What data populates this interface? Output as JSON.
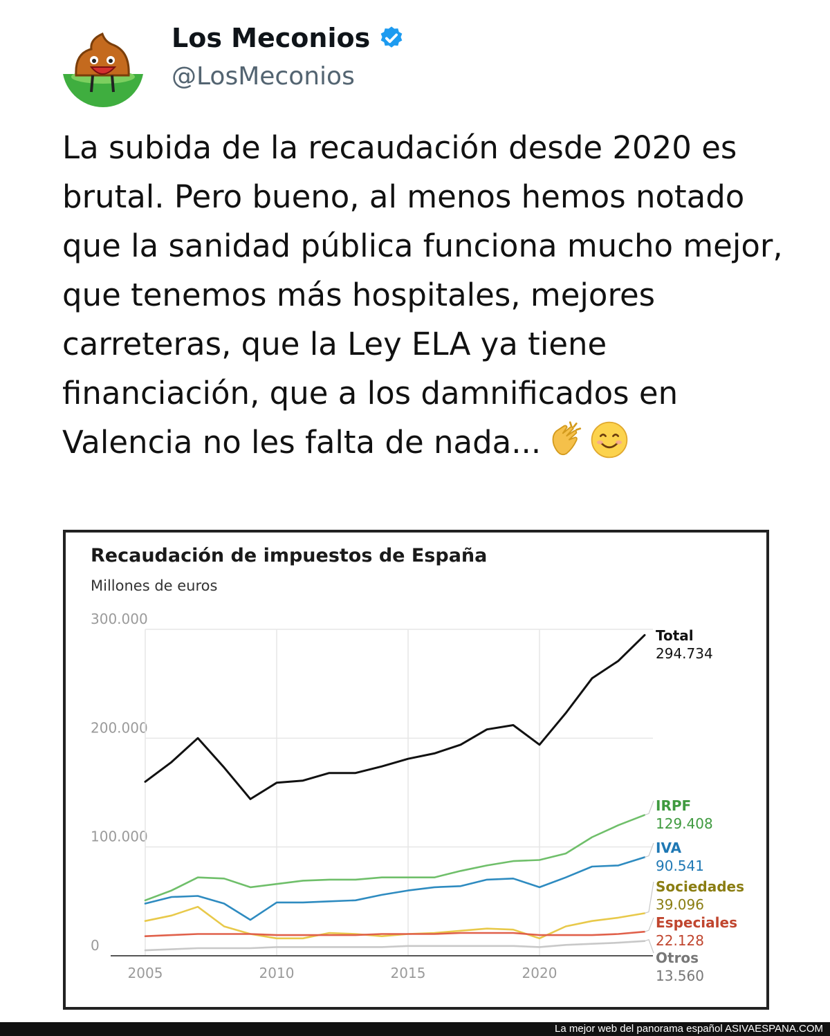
{
  "tweet": {
    "display_name": "Los Meconios",
    "handle": "@LosMeconios",
    "verified": true,
    "avatar_icon": "poop-character-avatar",
    "text": "La subida de la recaudación desde 2020 es brutal. Pero bueno, al menos hemos notado que la sanidad pública funciona mucho mejor, que tenemos más hospitales, mejores carreteras, que la Ley ELA ya tiene financiación, que a los damnificados en Valencia no les falta de nada...",
    "emojis": [
      "clapping-hands-emoji",
      "smiling-face-emoji"
    ]
  },
  "chart_data": {
    "type": "line",
    "title": "Recaudación de impuestos de España",
    "subtitle": "Millones de euros",
    "x": [
      2005,
      2006,
      2007,
      2008,
      2009,
      2010,
      2011,
      2012,
      2013,
      2014,
      2015,
      2016,
      2017,
      2018,
      2019,
      2020,
      2021,
      2022,
      2023,
      2024
    ],
    "xticks": [
      "2005",
      "2010",
      "2015",
      "2020"
    ],
    "yticks": [
      "0",
      "100.000",
      "200.000",
      "300.000"
    ],
    "ylim": [
      0,
      300000
    ],
    "xlim": [
      2005,
      2024
    ],
    "grid": true,
    "legend": "end-of-line labels",
    "series": [
      {
        "name": "Total",
        "label_value": "294.734",
        "color": "#111111",
        "values": [
          160000,
          178000,
          200000,
          173000,
          144000,
          159000,
          161000,
          168000,
          168000,
          174000,
          181000,
          186000,
          194000,
          208000,
          212000,
          194000,
          223000,
          255000,
          271000,
          294734
        ]
      },
      {
        "name": "IRPF",
        "label_value": "129.408",
        "color": "#6fbf6a",
        "values": [
          51000,
          60000,
          72000,
          71000,
          63000,
          66000,
          69000,
          70000,
          70000,
          72000,
          72000,
          72000,
          78000,
          83000,
          87000,
          88000,
          94000,
          109000,
          120000,
          129408
        ]
      },
      {
        "name": "IVA",
        "label_value": "90.541",
        "color": "#2e8bc0",
        "values": [
          48000,
          54000,
          55000,
          48000,
          33000,
          49000,
          49000,
          50000,
          51000,
          56000,
          60000,
          63000,
          64000,
          70000,
          71000,
          63000,
          72000,
          82000,
          83000,
          90541
        ]
      },
      {
        "name": "Sociedades",
        "label_value": "39.096",
        "color": "#e8c94a",
        "values": [
          32000,
          37000,
          45000,
          27000,
          20000,
          16000,
          16000,
          21000,
          20000,
          18000,
          20000,
          21000,
          23000,
          25000,
          24000,
          16000,
          27000,
          32000,
          35000,
          39096
        ]
      },
      {
        "name": "Especiales",
        "label_value": "22.128",
        "color": "#e0604a",
        "values": [
          18000,
          19000,
          20000,
          20000,
          20000,
          19000,
          19000,
          19000,
          19000,
          20000,
          20000,
          20000,
          21000,
          21000,
          21000,
          19000,
          19000,
          19000,
          20000,
          22128
        ]
      },
      {
        "name": "Otros",
        "label_value": "13.560",
        "color": "#c8c8c8",
        "values": [
          5000,
          6000,
          7000,
          7000,
          7000,
          8000,
          8000,
          8000,
          8000,
          8000,
          9000,
          9000,
          9000,
          9000,
          9000,
          8000,
          10000,
          11000,
          12000,
          13560
        ]
      }
    ],
    "label_colors": {
      "IRPF": "#3f9a3f",
      "IVA": "#1f78b4",
      "Sociedades": "#8a7d12",
      "Especiales": "#c0452e",
      "Otros": "#777777"
    }
  },
  "footer": {
    "text": "La mejor web del panorama español ASIVAESPANA.COM"
  }
}
